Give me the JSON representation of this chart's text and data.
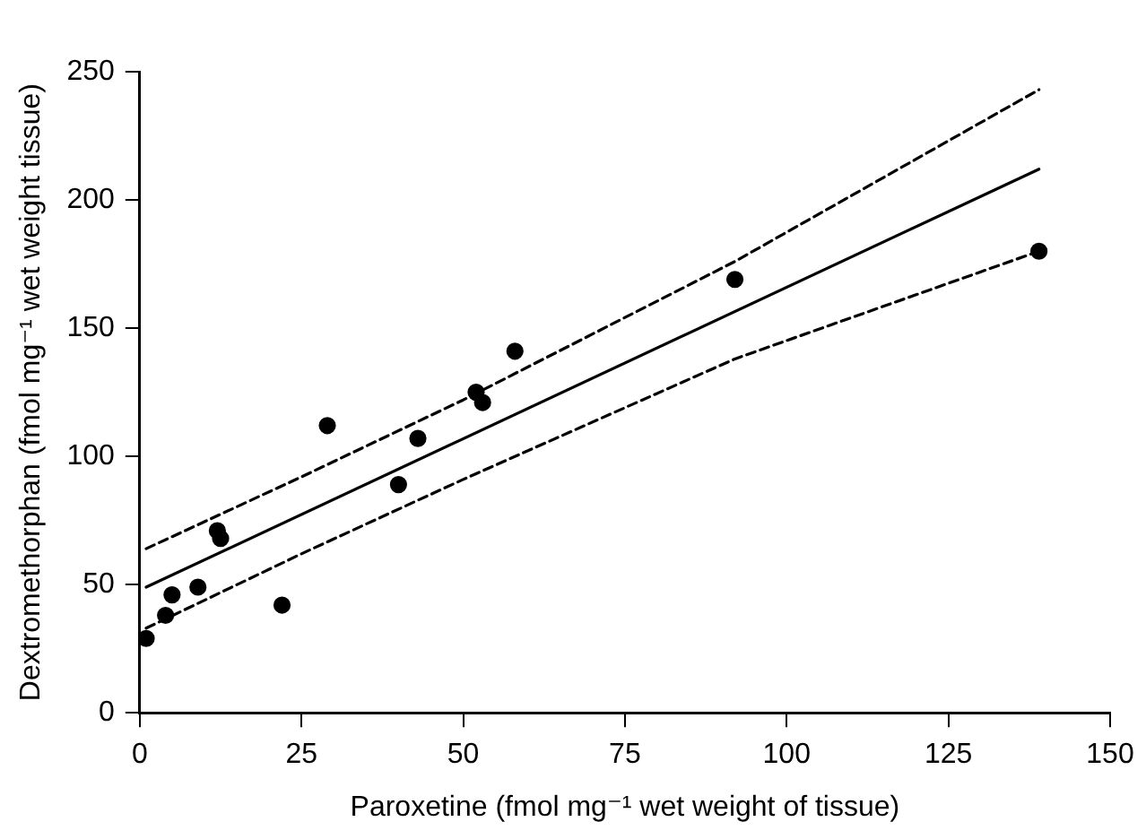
{
  "chart_data": {
    "type": "scatter",
    "xlabel": "Paroxetine (fmol mg⁻¹ wet weight of tissue)",
    "ylabel": "Dextromethorphan (fmol mg⁻¹ wet weight tissue)",
    "xlim": [
      0,
      150
    ],
    "xticks": [
      0,
      25,
      50,
      75,
      100,
      125,
      150
    ],
    "ylim": [
      0,
      250
    ],
    "yticks": [
      0,
      50,
      100,
      150,
      200,
      250
    ],
    "grid": false,
    "legend": false,
    "series": [
      {
        "type": "scatter",
        "color": "#000000",
        "marker": "circle",
        "x": [
          1,
          4,
          5,
          9,
          12,
          12.5,
          22,
          29,
          40,
          43,
          52,
          53,
          58,
          92,
          139
        ],
        "values": [
          29,
          38,
          46,
          49,
          71,
          68,
          42,
          112,
          89,
          107,
          125,
          121,
          141,
          169,
          180
        ]
      },
      {
        "type": "line",
        "color": "#000000",
        "marker": "none",
        "line_style": "solid",
        "x": [
          1,
          139
        ],
        "values": [
          49,
          212
        ]
      },
      {
        "type": "line",
        "color": "#000000",
        "marker": "none",
        "line_style": "dashed",
        "x": [
          1,
          25,
          50,
          92,
          139
        ],
        "values": [
          64,
          92,
          122,
          176,
          243
        ]
      },
      {
        "type": "line",
        "color": "#000000",
        "marker": "none",
        "line_style": "dashed",
        "x": [
          1,
          25,
          50,
          92,
          139
        ],
        "values": [
          33,
          62,
          91,
          138,
          180
        ]
      }
    ]
  }
}
